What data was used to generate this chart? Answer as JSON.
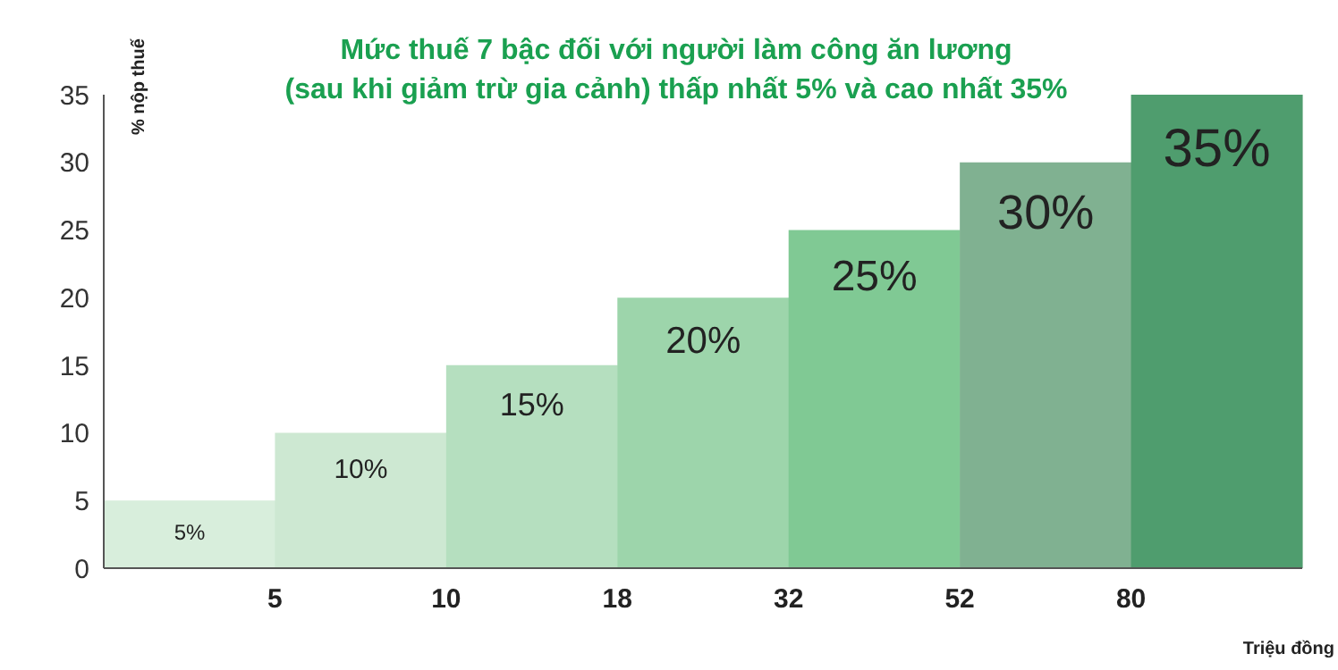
{
  "chart_data": {
    "type": "bar",
    "title": "Mức thuế 7 bậc đối với người làm công ăn lương\n(sau khi giảm trừ gia cảnh) thấp nhất 5% và cao nhất 35%",
    "xlabel": "Triệu đồng",
    "ylabel": "% nộp thuế",
    "categories": [
      "5",
      "10",
      "18",
      "32",
      "52",
      "80",
      null
    ],
    "values": [
      5,
      10,
      15,
      20,
      25,
      30,
      35
    ],
    "colors": [
      "#d8eedc",
      "#cde8d2",
      "#b5dfbf",
      "#9dd5ab",
      "#80c994",
      "#80b191",
      "#4f9d6e"
    ],
    "value_labels": [
      "5%",
      "10%",
      "15%",
      "20%",
      "25%",
      "30%",
      "35%"
    ],
    "ylim": [
      0,
      35
    ],
    "yticks": [
      0,
      5,
      10,
      15,
      20,
      25,
      30,
      35
    ]
  }
}
